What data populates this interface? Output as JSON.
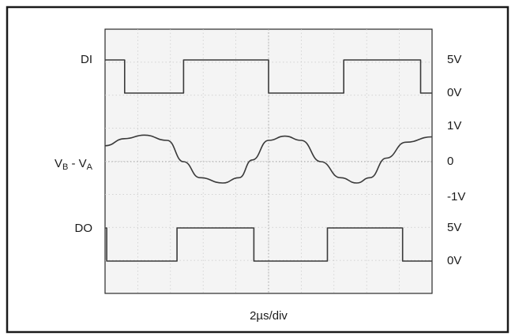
{
  "chart_data": {
    "type": "line",
    "title": "",
    "xlabel": "2µs/div",
    "timebase_us_per_div": 2,
    "x_range_divisions": [
      0,
      10
    ],
    "grid": true,
    "traces": [
      {
        "name": "DI",
        "name_parts": {
          "main": "DI",
          "sub1": "",
          "mid": "",
          "sub2": ""
        },
        "scale_labels": [
          {
            "text": "5V",
            "level": 5
          },
          {
            "text": "0V",
            "level": 0
          }
        ],
        "kind": "square",
        "high": 5,
        "low": 0,
        "transitions_div": [
          0.6,
          2.4,
          5.0,
          7.3,
          9.65
        ],
        "initial_state": "high"
      },
      {
        "name": "VB - VA",
        "name_parts": {
          "main": "V",
          "sub1": "B",
          "mid": " - V",
          "sub2": "A"
        },
        "scale_labels": [
          {
            "text": "1V",
            "level": 1
          },
          {
            "text": "0",
            "level": 0
          },
          {
            "text": "-1V",
            "level": -1
          }
        ],
        "kind": "waveform",
        "x_div": [
          0.0,
          0.6,
          1.2,
          1.9,
          2.4,
          2.9,
          3.6,
          4.1,
          4.5,
          5.0,
          5.5,
          6.0,
          6.6,
          7.2,
          7.7,
          8.1,
          8.6,
          9.2,
          10.0
        ],
        "values": [
          0.45,
          0.65,
          0.75,
          0.6,
          0.0,
          -0.45,
          -0.6,
          -0.45,
          0.05,
          0.6,
          0.72,
          0.6,
          0.0,
          -0.45,
          -0.6,
          -0.45,
          0.1,
          0.55,
          0.7
        ]
      },
      {
        "name": "DO",
        "name_parts": {
          "main": "DO",
          "sub1": "",
          "mid": "",
          "sub2": ""
        },
        "scale_labels": [
          {
            "text": "5V",
            "level": 5
          },
          {
            "text": "0V",
            "level": 0
          }
        ],
        "kind": "square",
        "high": 5,
        "low": 0,
        "transitions_div": [
          0.05,
          2.2,
          4.55,
          6.8,
          9.1
        ],
        "initial_state": "high"
      }
    ]
  }
}
